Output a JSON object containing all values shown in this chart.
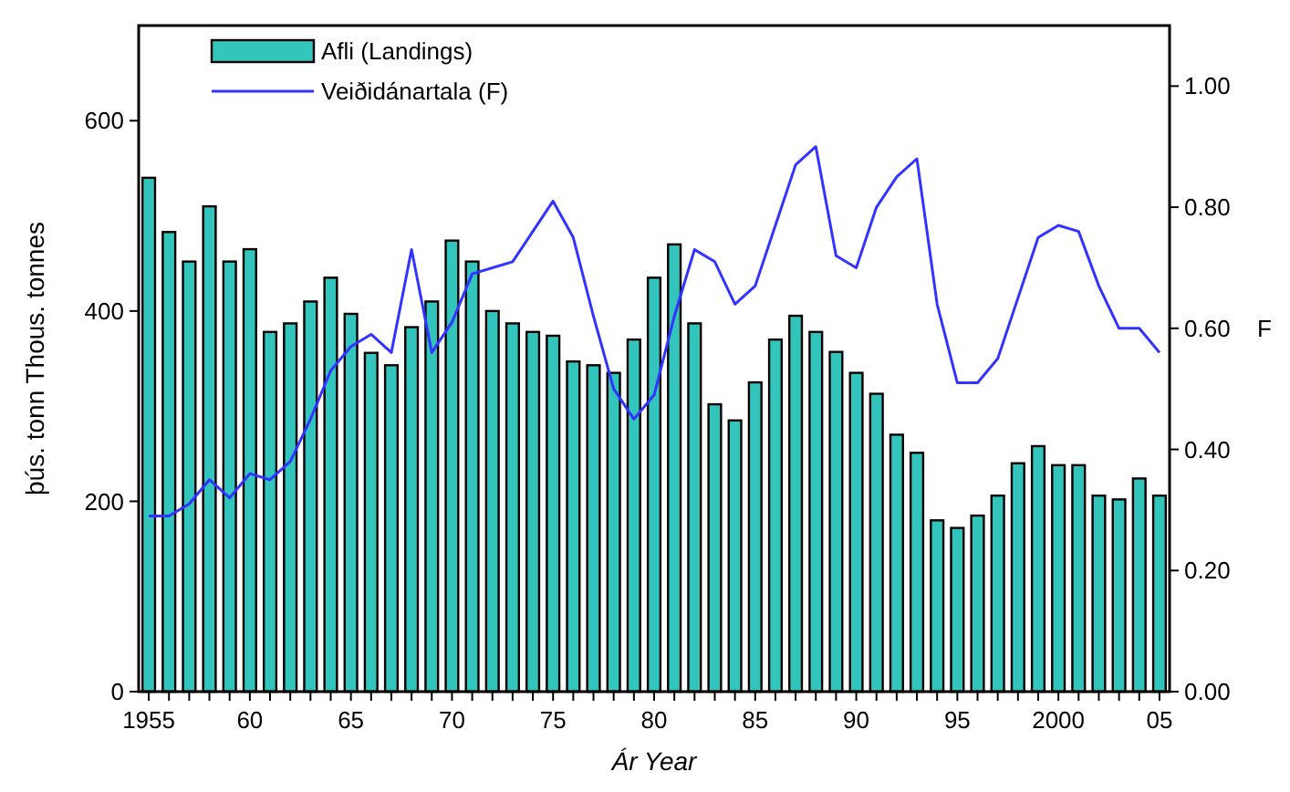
{
  "chart_data": {
    "type": "bar",
    "xlabel": "Ár Year",
    "ylabel": "þús. tonn  Thous. tonnes",
    "y2label": "F",
    "x": [
      1955,
      1956,
      1957,
      1958,
      1959,
      1960,
      1961,
      1962,
      1963,
      1964,
      1965,
      1966,
      1967,
      1968,
      1969,
      1970,
      1971,
      1972,
      1973,
      1974,
      1975,
      1976,
      1977,
      1978,
      1979,
      1980,
      1981,
      1982,
      1983,
      1984,
      1985,
      1986,
      1987,
      1988,
      1989,
      1990,
      1991,
      1992,
      1993,
      1994,
      1995,
      1996,
      1997,
      1998,
      1999,
      2000,
      2001,
      2002,
      2003,
      2004,
      2005
    ],
    "series": [
      {
        "name": "Afli (Landings)",
        "color": "#33c4bc",
        "values": [
          540,
          483,
          452,
          510,
          452,
          465,
          378,
          387,
          410,
          435,
          397,
          356,
          343,
          383,
          410,
          474,
          452,
          400,
          387,
          378,
          374,
          347,
          343,
          335,
          370,
          435,
          470,
          387,
          302,
          285,
          325,
          370,
          395,
          378,
          357,
          335,
          313,
          270,
          251,
          180,
          172,
          185,
          206,
          240,
          258,
          238,
          238,
          206,
          202,
          224,
          206
        ]
      },
      {
        "name": "Veiðidánartala (F)",
        "type": "line",
        "axis": "y2",
        "color": "#3333ff",
        "values": [
          0.29,
          0.29,
          0.31,
          0.35,
          0.32,
          0.36,
          0.35,
          0.38,
          0.45,
          0.53,
          0.57,
          0.59,
          0.56,
          0.73,
          0.56,
          0.61,
          0.69,
          0.7,
          0.71,
          0.76,
          0.81,
          0.75,
          0.62,
          0.5,
          0.45,
          0.49,
          0.62,
          0.73,
          0.71,
          0.64,
          0.67,
          0.77,
          0.87,
          0.9,
          0.72,
          0.7,
          0.8,
          0.85,
          0.88,
          0.64,
          0.51,
          0.51,
          0.55,
          0.65,
          0.75,
          0.77,
          0.76,
          0.67,
          0.6,
          0.6,
          0.56
        ]
      }
    ],
    "xlim": [
      1954.5,
      2005.5
    ],
    "xticks": [
      {
        "value": 1955,
        "label": "1955"
      },
      {
        "value": 1956,
        "label": null
      },
      {
        "value": 1957,
        "label": null
      },
      {
        "value": 1958,
        "label": null
      },
      {
        "value": 1959,
        "label": null
      },
      {
        "value": 1960,
        "label": "60"
      },
      {
        "value": 1961,
        "label": null
      },
      {
        "value": 1962,
        "label": null
      },
      {
        "value": 1963,
        "label": null
      },
      {
        "value": 1964,
        "label": null
      },
      {
        "value": 1965,
        "label": "65"
      },
      {
        "value": 1966,
        "label": null
      },
      {
        "value": 1967,
        "label": null
      },
      {
        "value": 1968,
        "label": null
      },
      {
        "value": 1969,
        "label": null
      },
      {
        "value": 1970,
        "label": "70"
      },
      {
        "value": 1971,
        "label": null
      },
      {
        "value": 1972,
        "label": null
      },
      {
        "value": 1973,
        "label": null
      },
      {
        "value": 1974,
        "label": null
      },
      {
        "value": 1975,
        "label": "75"
      },
      {
        "value": 1976,
        "label": null
      },
      {
        "value": 1977,
        "label": null
      },
      {
        "value": 1978,
        "label": null
      },
      {
        "value": 1979,
        "label": null
      },
      {
        "value": 1980,
        "label": "80"
      },
      {
        "value": 1981,
        "label": null
      },
      {
        "value": 1982,
        "label": null
      },
      {
        "value": 1983,
        "label": null
      },
      {
        "value": 1984,
        "label": null
      },
      {
        "value": 1985,
        "label": "85"
      },
      {
        "value": 1986,
        "label": null
      },
      {
        "value": 1987,
        "label": null
      },
      {
        "value": 1988,
        "label": null
      },
      {
        "value": 1989,
        "label": null
      },
      {
        "value": 1990,
        "label": "90"
      },
      {
        "value": 1991,
        "label": null
      },
      {
        "value": 1992,
        "label": null
      },
      {
        "value": 1993,
        "label": null
      },
      {
        "value": 1994,
        "label": null
      },
      {
        "value": 1995,
        "label": "95"
      },
      {
        "value": 1996,
        "label": null
      },
      {
        "value": 1997,
        "label": null
      },
      {
        "value": 1998,
        "label": null
      },
      {
        "value": 1999,
        "label": null
      },
      {
        "value": 2000,
        "label": "2000"
      },
      {
        "value": 2001,
        "label": null
      },
      {
        "value": 2002,
        "label": null
      },
      {
        "value": 2003,
        "label": null
      },
      {
        "value": 2004,
        "label": null
      },
      {
        "value": 2005,
        "label": "05"
      }
    ],
    "ylim": [
      0,
      700
    ],
    "yticks": [
      0,
      200,
      400,
      600
    ],
    "y2lim": [
      0,
      1.1
    ],
    "y2ticks": [
      {
        "value": 0,
        "label": "0.00"
      },
      {
        "value": 0.2,
        "label": "0.20"
      },
      {
        "value": 0.4,
        "label": "0.40"
      },
      {
        "value": 0.6,
        "label": "0.60"
      },
      {
        "value": 0.8,
        "label": "0.80"
      },
      {
        "value": 1,
        "label": "1.00"
      }
    ],
    "legend": "top left",
    "grid": false
  }
}
